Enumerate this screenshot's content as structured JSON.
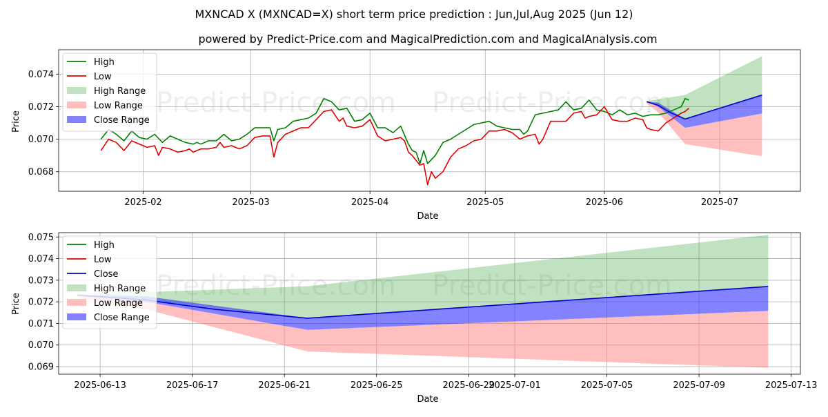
{
  "title": "MXNCAD X (MXNCAD=X) short term price prediction : Jun,Jul,Aug 2025 (Jun 12)",
  "subtitle": "powered by Predict-Price.com and MagicalPrediction.com and MagicalAnalysis.com",
  "watermark": "Predict-Price.com",
  "colors": {
    "high": "#008000",
    "low": "#e00000",
    "close": "#0000cc",
    "high_range": "#2e9f2e",
    "low_range": "#ff7f7f",
    "close_range": "#3030ff",
    "grid": "#b0b0b0"
  },
  "chart_data": [
    {
      "type": "line",
      "name": "history-and-forecast",
      "xlabel": "Date",
      "ylabel": "Price",
      "xlim": [
        "2025-01-10",
        "2025-07-22"
      ],
      "ylim": [
        0.0668,
        0.0755
      ],
      "x_ticks": [
        "2025-02-01",
        "2025-03-01",
        "2025-04-01",
        "2025-05-01",
        "2025-06-01",
        "2025-07-01"
      ],
      "x_tick_labels": [
        "2025-02",
        "2025-03",
        "2025-04",
        "2025-05",
        "2025-06",
        "2025-07"
      ],
      "y_ticks": [
        0.068,
        0.07,
        0.072,
        0.074
      ],
      "y_tick_labels": [
        "0.068",
        "0.070",
        "0.072",
        "0.074"
      ],
      "legend": [
        "High",
        "Low",
        "High Range",
        "Low Range",
        "Close Range"
      ],
      "legend_location": "top-left",
      "series": [
        {
          "name": "High",
          "points": [
            [
              "2025-01-21",
              0.07
            ],
            [
              "2025-01-23",
              0.0706
            ],
            [
              "2025-01-25",
              0.0703
            ],
            [
              "2025-01-27",
              0.0699
            ],
            [
              "2025-01-29",
              0.0705
            ],
            [
              "2025-01-31",
              0.0701
            ],
            [
              "2025-02-02",
              0.07
            ],
            [
              "2025-02-04",
              0.0703
            ],
            [
              "2025-02-06",
              0.0698
            ],
            [
              "2025-02-08",
              0.0702
            ],
            [
              "2025-02-10",
              0.07
            ],
            [
              "2025-02-12",
              0.0698
            ],
            [
              "2025-02-14",
              0.0697
            ],
            [
              "2025-02-15",
              0.0698
            ],
            [
              "2025-02-16",
              0.0697
            ],
            [
              "2025-02-18",
              0.0699
            ],
            [
              "2025-02-20",
              0.0699
            ],
            [
              "2025-02-22",
              0.0703
            ],
            [
              "2025-02-24",
              0.0699
            ],
            [
              "2025-02-26",
              0.07
            ],
            [
              "2025-02-28",
              0.0703
            ],
            [
              "2025-03-02",
              0.0707
            ],
            [
              "2025-03-04",
              0.0707
            ],
            [
              "2025-03-06",
              0.0707
            ],
            [
              "2025-03-07",
              0.0699
            ],
            [
              "2025-03-08",
              0.0706
            ],
            [
              "2025-03-10",
              0.0707
            ],
            [
              "2025-03-12",
              0.0711
            ],
            [
              "2025-03-14",
              0.0712
            ],
            [
              "2025-03-16",
              0.0713
            ],
            [
              "2025-03-18",
              0.0716
            ],
            [
              "2025-03-20",
              0.0725
            ],
            [
              "2025-03-22",
              0.0723
            ],
            [
              "2025-03-24",
              0.0718
            ],
            [
              "2025-03-26",
              0.0719
            ],
            [
              "2025-03-28",
              0.0711
            ],
            [
              "2025-03-30",
              0.0712
            ],
            [
              "2025-04-01",
              0.0716
            ],
            [
              "2025-04-03",
              0.0707
            ],
            [
              "2025-04-05",
              0.0707
            ],
            [
              "2025-04-07",
              0.0704
            ],
            [
              "2025-04-09",
              0.0708
            ],
            [
              "2025-04-11",
              0.0697
            ],
            [
              "2025-04-12",
              0.0693
            ],
            [
              "2025-04-13",
              0.0692
            ],
            [
              "2025-04-14",
              0.0685
            ],
            [
              "2025-04-15",
              0.0693
            ],
            [
              "2025-04-16",
              0.0685
            ],
            [
              "2025-04-18",
              0.069
            ],
            [
              "2025-04-20",
              0.0698
            ],
            [
              "2025-04-22",
              0.07
            ],
            [
              "2025-04-24",
              0.0703
            ],
            [
              "2025-04-26",
              0.0706
            ],
            [
              "2025-04-28",
              0.0709
            ],
            [
              "2025-04-30",
              0.071
            ],
            [
              "2025-05-02",
              0.0711
            ],
            [
              "2025-05-04",
              0.0708
            ],
            [
              "2025-05-06",
              0.0707
            ],
            [
              "2025-05-08",
              0.0706
            ],
            [
              "2025-05-10",
              0.0706
            ],
            [
              "2025-05-11",
              0.0703
            ],
            [
              "2025-05-12",
              0.0705
            ],
            [
              "2025-05-14",
              0.0715
            ],
            [
              "2025-05-16",
              0.0716
            ],
            [
              "2025-05-18",
              0.0717
            ],
            [
              "2025-05-20",
              0.0718
            ],
            [
              "2025-05-22",
              0.0723
            ],
            [
              "2025-05-24",
              0.0718
            ],
            [
              "2025-05-26",
              0.0719
            ],
            [
              "2025-05-28",
              0.0724
            ],
            [
              "2025-05-30",
              0.0718
            ],
            [
              "2025-06-01",
              0.0717
            ],
            [
              "2025-06-03",
              0.0715
            ],
            [
              "2025-06-05",
              0.0718
            ],
            [
              "2025-06-07",
              0.0715
            ],
            [
              "2025-06-09",
              0.0716
            ],
            [
              "2025-06-11",
              0.0714
            ],
            [
              "2025-06-13",
              0.0715
            ],
            [
              "2025-06-15",
              0.0715
            ],
            [
              "2025-06-17",
              0.0716
            ],
            [
              "2025-06-19",
              0.0718
            ],
            [
              "2025-06-21",
              0.072
            ],
            [
              "2025-06-22",
              0.0725
            ],
            [
              "2025-06-23",
              0.0724
            ]
          ]
        },
        {
          "name": "Low",
          "points": [
            [
              "2025-01-21",
              0.0693
            ],
            [
              "2025-01-23",
              0.07
            ],
            [
              "2025-01-25",
              0.0698
            ],
            [
              "2025-01-27",
              0.0693
            ],
            [
              "2025-01-29",
              0.0699
            ],
            [
              "2025-01-31",
              0.0697
            ],
            [
              "2025-02-02",
              0.0695
            ],
            [
              "2025-02-04",
              0.0696
            ],
            [
              "2025-02-05",
              0.069
            ],
            [
              "2025-02-06",
              0.0695
            ],
            [
              "2025-02-08",
              0.0694
            ],
            [
              "2025-02-10",
              0.0692
            ],
            [
              "2025-02-12",
              0.0693
            ],
            [
              "2025-02-13",
              0.0694
            ],
            [
              "2025-02-14",
              0.0692
            ],
            [
              "2025-02-16",
              0.0694
            ],
            [
              "2025-02-18",
              0.0694
            ],
            [
              "2025-02-20",
              0.0695
            ],
            [
              "2025-02-21",
              0.0698
            ],
            [
              "2025-02-22",
              0.0695
            ],
            [
              "2025-02-24",
              0.0696
            ],
            [
              "2025-02-26",
              0.0694
            ],
            [
              "2025-02-28",
              0.0696
            ],
            [
              "2025-03-02",
              0.0701
            ],
            [
              "2025-03-04",
              0.0702
            ],
            [
              "2025-03-06",
              0.0702
            ],
            [
              "2025-03-07",
              0.0689
            ],
            [
              "2025-03-08",
              0.0698
            ],
            [
              "2025-03-10",
              0.0703
            ],
            [
              "2025-03-12",
              0.0705
            ],
            [
              "2025-03-14",
              0.0707
            ],
            [
              "2025-03-16",
              0.0707
            ],
            [
              "2025-03-18",
              0.0712
            ],
            [
              "2025-03-20",
              0.0717
            ],
            [
              "2025-03-22",
              0.0718
            ],
            [
              "2025-03-24",
              0.0711
            ],
            [
              "2025-03-25",
              0.0713
            ],
            [
              "2025-03-26",
              0.0708
            ],
            [
              "2025-03-28",
              0.0707
            ],
            [
              "2025-03-30",
              0.0708
            ],
            [
              "2025-04-01",
              0.0712
            ],
            [
              "2025-04-03",
              0.0702
            ],
            [
              "2025-04-05",
              0.0699
            ],
            [
              "2025-04-07",
              0.07
            ],
            [
              "2025-04-09",
              0.0701
            ],
            [
              "2025-04-10",
              0.0699
            ],
            [
              "2025-04-11",
              0.0692
            ],
            [
              "2025-04-12",
              0.069
            ],
            [
              "2025-04-13",
              0.0687
            ],
            [
              "2025-04-14",
              0.0684
            ],
            [
              "2025-04-15",
              0.0685
            ],
            [
              "2025-04-16",
              0.0672
            ],
            [
              "2025-04-17",
              0.068
            ],
            [
              "2025-04-18",
              0.0676
            ],
            [
              "2025-04-20",
              0.068
            ],
            [
              "2025-04-22",
              0.0689
            ],
            [
              "2025-04-24",
              0.0694
            ],
            [
              "2025-04-26",
              0.0696
            ],
            [
              "2025-04-28",
              0.0699
            ],
            [
              "2025-04-30",
              0.07
            ],
            [
              "2025-05-02",
              0.0705
            ],
            [
              "2025-05-04",
              0.0705
            ],
            [
              "2025-05-06",
              0.0706
            ],
            [
              "2025-05-08",
              0.0704
            ],
            [
              "2025-05-10",
              0.07
            ],
            [
              "2025-05-12",
              0.0702
            ],
            [
              "2025-05-14",
              0.0703
            ],
            [
              "2025-05-15",
              0.0697
            ],
            [
              "2025-05-16",
              0.07
            ],
            [
              "2025-05-18",
              0.0711
            ],
            [
              "2025-05-20",
              0.0711
            ],
            [
              "2025-05-22",
              0.0711
            ],
            [
              "2025-05-24",
              0.0716
            ],
            [
              "2025-05-26",
              0.0717
            ],
            [
              "2025-05-27",
              0.0713
            ],
            [
              "2025-05-28",
              0.0714
            ],
            [
              "2025-05-30",
              0.0715
            ],
            [
              "2025-06-01",
              0.072
            ],
            [
              "2025-06-03",
              0.0712
            ],
            [
              "2025-06-05",
              0.0711
            ],
            [
              "2025-06-07",
              0.0711
            ],
            [
              "2025-06-09",
              0.0713
            ],
            [
              "2025-06-11",
              0.0712
            ],
            [
              "2025-06-12",
              0.0707
            ],
            [
              "2025-06-13",
              0.0706
            ],
            [
              "2025-06-15",
              0.0705
            ],
            [
              "2025-06-17",
              0.071
            ],
            [
              "2025-06-19",
              0.0713
            ],
            [
              "2025-06-21",
              0.0716
            ],
            [
              "2025-06-22",
              0.0717
            ],
            [
              "2025-06-23",
              0.0719
            ]
          ]
        },
        {
          "name": "Close",
          "points": [
            [
              "2025-06-12",
              0.07231
            ],
            [
              "2025-06-15",
              0.07208
            ],
            [
              "2025-06-18",
              0.07165
            ],
            [
              "2025-06-22",
              0.07124
            ],
            [
              "2025-07-12",
              0.07271
            ]
          ]
        }
      ],
      "ranges": [
        {
          "name": "High Range",
          "x": [
            "2025-06-12",
            "2025-06-15",
            "2025-06-22",
            "2025-07-12"
          ],
          "upper": [
            0.07235,
            0.07245,
            0.07272,
            0.0751
          ],
          "lower": [
            0.07231,
            0.07208,
            0.07124,
            0.07271
          ]
        },
        {
          "name": "Low Range",
          "x": [
            "2025-06-12",
            "2025-06-15",
            "2025-06-22",
            "2025-07-12"
          ],
          "upper": [
            0.07231,
            0.072,
            0.0707,
            0.07158
          ],
          "lower": [
            0.0722,
            0.07165,
            0.0697,
            0.06895
          ]
        },
        {
          "name": "Close Range",
          "x": [
            "2025-06-12",
            "2025-06-15",
            "2025-06-22",
            "2025-07-12"
          ],
          "upper": [
            0.07231,
            0.07225,
            0.07124,
            0.07271
          ],
          "lower": [
            0.07231,
            0.072,
            0.0707,
            0.07158
          ]
        }
      ]
    },
    {
      "type": "line",
      "name": "forecast-zoom",
      "xlabel": "Date",
      "ylabel": "Price",
      "xlim": [
        "2025-06-11.2",
        "2025-07-13.4"
      ],
      "ylim": [
        0.06865,
        0.0752
      ],
      "x_ticks": [
        "2025-06-13",
        "2025-06-17",
        "2025-06-21",
        "2025-06-25",
        "2025-06-29",
        "2025-07-01",
        "2025-07-05",
        "2025-07-09",
        "2025-07-13"
      ],
      "x_tick_labels": [
        "2025-06-13",
        "2025-06-17",
        "2025-06-21",
        "2025-06-25",
        "2025-06-29",
        "2025-07-01",
        "2025-07-05",
        "2025-07-09",
        "2025-07-13"
      ],
      "y_ticks": [
        0.069,
        0.07,
        0.071,
        0.072,
        0.073,
        0.074,
        0.075
      ],
      "y_tick_labels": [
        "0.069",
        "0.070",
        "0.071",
        "0.072",
        "0.073",
        "0.074",
        "0.075"
      ],
      "legend": [
        "High",
        "Low",
        "Close",
        "High Range",
        "Low Range",
        "Close Range"
      ],
      "legend_location": "top-left",
      "series": [
        {
          "name": "Close",
          "points": [
            [
              "2025-06-12",
              0.07231
            ],
            [
              "2025-06-15",
              0.07208
            ],
            [
              "2025-06-18",
              0.07165
            ],
            [
              "2025-06-22",
              0.07124
            ],
            [
              "2025-07-12",
              0.07271
            ]
          ]
        }
      ],
      "ranges": [
        {
          "name": "High Range",
          "x": [
            "2025-06-12",
            "2025-06-15",
            "2025-06-22",
            "2025-07-12"
          ],
          "upper": [
            0.07235,
            0.07245,
            0.07272,
            0.0751
          ],
          "lower": [
            0.07231,
            0.07208,
            0.07124,
            0.07271
          ]
        },
        {
          "name": "Low Range",
          "x": [
            "2025-06-12",
            "2025-06-15",
            "2025-06-22",
            "2025-07-12"
          ],
          "upper": [
            0.07231,
            0.072,
            0.0707,
            0.07158
          ],
          "lower": [
            0.0722,
            0.07165,
            0.0697,
            0.06895
          ]
        },
        {
          "name": "Close Range",
          "x": [
            "2025-06-12",
            "2025-06-15",
            "2025-06-22",
            "2025-07-12"
          ],
          "upper": [
            0.07231,
            0.07225,
            0.07124,
            0.07271
          ],
          "lower": [
            0.07231,
            0.072,
            0.0707,
            0.07158
          ]
        }
      ]
    }
  ]
}
